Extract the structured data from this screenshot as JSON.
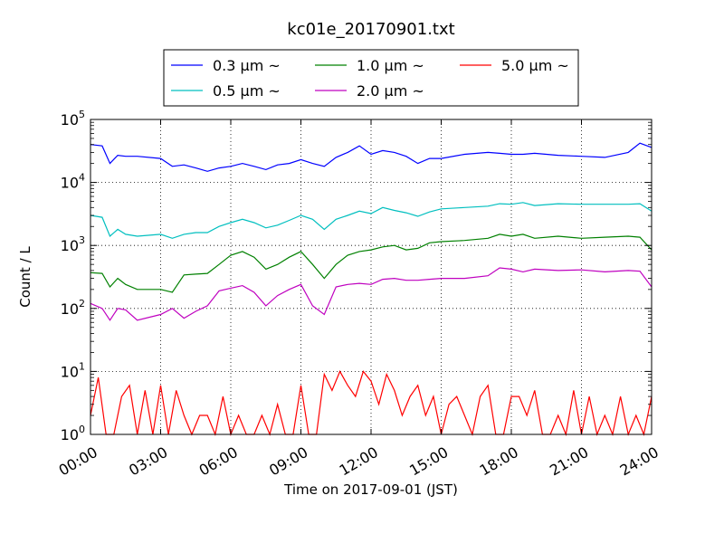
{
  "chart_data": {
    "type": "line",
    "title": "kc01e_20170901.txt",
    "xlabel": "Time on 2017-09-01 (JST)",
    "ylabel": "Count / L",
    "yscale": "log",
    "ylim": [
      1,
      100000
    ],
    "xlim": [
      "2017-09-01 00:00",
      "2017-09-02 00:00"
    ],
    "grid": true,
    "legend_position": "top-center, outside plot area",
    "x_tick_labels": [
      "00:00",
      "03:00",
      "06:00",
      "09:00",
      "12:00",
      "15:00",
      "18:00",
      "21:00",
      "24:00"
    ],
    "y_tick_labels": [
      {
        "base": "10",
        "exp": "0"
      },
      {
        "base": "10",
        "exp": "1"
      },
      {
        "base": "10",
        "exp": "2"
      },
      {
        "base": "10",
        "exp": "3"
      },
      {
        "base": "10",
        "exp": "4"
      },
      {
        "base": "10",
        "exp": "5"
      }
    ],
    "series": [
      {
        "name": "0.3 μm ~",
        "color": "#0000ff",
        "x": [
          "00:00",
          "00:30",
          "00:50",
          "01:10",
          "01:30",
          "02:00",
          "03:00",
          "03:30",
          "04:00",
          "04:30",
          "05:00",
          "05:30",
          "06:00",
          "06:30",
          "07:00",
          "07:30",
          "08:00",
          "08:30",
          "09:00",
          "09:30",
          "10:00",
          "10:30",
          "11:00",
          "11:30",
          "12:00",
          "12:30",
          "13:00",
          "13:30",
          "14:00",
          "14:30",
          "15:00",
          "16:00",
          "17:00",
          "17:30",
          "18:00",
          "18:30",
          "19:00",
          "20:00",
          "21:00",
          "22:00",
          "23:00",
          "23:30",
          "24:00"
        ],
        "values": [
          40000,
          38000,
          20000,
          27000,
          26000,
          26000,
          24000,
          18000,
          19000,
          17000,
          15000,
          17000,
          18000,
          20000,
          18000,
          16000,
          19000,
          20000,
          23000,
          20000,
          18000,
          25000,
          30000,
          38000,
          28000,
          32000,
          30000,
          26000,
          20000,
          24000,
          24000,
          28000,
          30000,
          29000,
          28000,
          28000,
          29000,
          27000,
          26000,
          25000,
          30000,
          42000,
          36000
        ]
      },
      {
        "name": "0.5 μm ~",
        "color": "#00bfbf",
        "x": [
          "00:00",
          "00:30",
          "00:50",
          "01:10",
          "01:30",
          "02:00",
          "03:00",
          "03:30",
          "04:00",
          "04:30",
          "05:00",
          "05:30",
          "06:00",
          "06:30",
          "07:00",
          "07:30",
          "08:00",
          "08:30",
          "09:00",
          "09:30",
          "10:00",
          "10:30",
          "11:00",
          "11:30",
          "12:00",
          "12:30",
          "13:00",
          "13:30",
          "14:00",
          "14:30",
          "15:00",
          "16:00",
          "17:00",
          "17:30",
          "18:00",
          "18:30",
          "19:00",
          "20:00",
          "21:00",
          "22:00",
          "23:00",
          "23:30",
          "24:00"
        ],
        "values": [
          3000,
          2800,
          1400,
          1800,
          1500,
          1400,
          1500,
          1300,
          1500,
          1600,
          1600,
          2000,
          2300,
          2600,
          2300,
          1900,
          2100,
          2500,
          3000,
          2600,
          1800,
          2600,
          3000,
          3500,
          3200,
          4000,
          3600,
          3300,
          2900,
          3400,
          3800,
          4000,
          4200,
          4600,
          4500,
          4800,
          4300,
          4600,
          4500,
          4500,
          4500,
          4600,
          3500
        ]
      },
      {
        "name": "1.0 μm ~",
        "color": "#008000",
        "x": [
          "00:00",
          "00:30",
          "00:50",
          "01:10",
          "01:30",
          "02:00",
          "03:00",
          "03:30",
          "04:00",
          "04:30",
          "05:00",
          "05:30",
          "06:00",
          "06:30",
          "07:00",
          "07:30",
          "08:00",
          "08:30",
          "09:00",
          "09:30",
          "10:00",
          "10:30",
          "11:00",
          "11:30",
          "12:00",
          "12:30",
          "13:00",
          "13:30",
          "14:00",
          "14:30",
          "15:00",
          "16:00",
          "17:00",
          "17:30",
          "18:00",
          "18:30",
          "19:00",
          "20:00",
          "21:00",
          "22:00",
          "23:00",
          "23:30",
          "24:00"
        ],
        "values": [
          370,
          360,
          220,
          300,
          240,
          200,
          200,
          180,
          340,
          350,
          360,
          500,
          700,
          800,
          650,
          420,
          500,
          650,
          800,
          500,
          300,
          500,
          700,
          800,
          850,
          950,
          1000,
          850,
          900,
          1100,
          1150,
          1200,
          1300,
          1500,
          1400,
          1500,
          1300,
          1400,
          1300,
          1350,
          1400,
          1350,
          850
        ]
      },
      {
        "name": "2.0 μm ~",
        "color": "#bf00bf",
        "x": [
          "00:00",
          "00:30",
          "00:50",
          "01:10",
          "01:30",
          "02:00",
          "03:00",
          "03:30",
          "04:00",
          "04:30",
          "05:00",
          "05:30",
          "06:00",
          "06:30",
          "07:00",
          "07:30",
          "08:00",
          "08:30",
          "09:00",
          "09:30",
          "10:00",
          "10:30",
          "11:00",
          "11:30",
          "12:00",
          "12:30",
          "13:00",
          "13:30",
          "14:00",
          "14:30",
          "15:00",
          "16:00",
          "17:00",
          "17:30",
          "18:00",
          "18:30",
          "19:00",
          "20:00",
          "21:00",
          "22:00",
          "23:00",
          "23:30",
          "24:00"
        ],
        "values": [
          120,
          100,
          65,
          100,
          95,
          65,
          80,
          100,
          70,
          90,
          110,
          190,
          210,
          230,
          180,
          110,
          160,
          200,
          240,
          110,
          80,
          220,
          240,
          250,
          240,
          290,
          300,
          280,
          280,
          290,
          300,
          300,
          330,
          440,
          420,
          380,
          420,
          400,
          410,
          380,
          400,
          390,
          220
        ]
      },
      {
        "name": "5.0 μm ~",
        "color": "#ff0000",
        "x": [
          "00:00",
          "00:20",
          "00:40",
          "01:00",
          "01:20",
          "01:40",
          "02:00",
          "02:20",
          "02:40",
          "03:00",
          "03:20",
          "03:40",
          "04:00",
          "04:20",
          "04:40",
          "05:00",
          "05:20",
          "05:40",
          "06:00",
          "06:20",
          "06:40",
          "07:00",
          "07:20",
          "07:40",
          "08:00",
          "08:20",
          "08:40",
          "09:00",
          "09:20",
          "09:40",
          "10:00",
          "10:20",
          "10:40",
          "11:00",
          "11:20",
          "11:40",
          "12:00",
          "12:20",
          "12:40",
          "13:00",
          "13:20",
          "13:40",
          "14:00",
          "14:20",
          "14:40",
          "15:00",
          "15:20",
          "15:40",
          "16:00",
          "16:20",
          "16:40",
          "17:00",
          "17:20",
          "17:40",
          "18:00",
          "18:20",
          "18:40",
          "19:00",
          "19:20",
          "19:40",
          "20:00",
          "20:20",
          "20:40",
          "21:00",
          "21:20",
          "21:40",
          "22:00",
          "22:20",
          "22:40",
          "23:00",
          "23:20",
          "23:40",
          "24:00"
        ],
        "values": [
          2,
          8,
          1,
          1,
          4,
          6,
          1,
          5,
          1,
          6,
          1,
          5,
          2,
          1,
          2,
          2,
          1,
          4,
          1,
          2,
          1,
          1,
          2,
          1,
          3,
          1,
          1,
          6,
          1,
          1,
          9,
          5,
          10,
          6,
          4,
          10,
          7,
          3,
          9,
          5,
          2,
          4,
          6,
          2,
          4,
          1,
          3,
          4,
          2,
          1,
          4,
          6,
          1,
          1,
          4,
          4,
          2,
          5,
          1,
          1,
          2,
          1,
          5,
          1,
          4,
          1,
          2,
          1,
          4,
          1,
          2,
          1,
          4
        ]
      }
    ]
  }
}
